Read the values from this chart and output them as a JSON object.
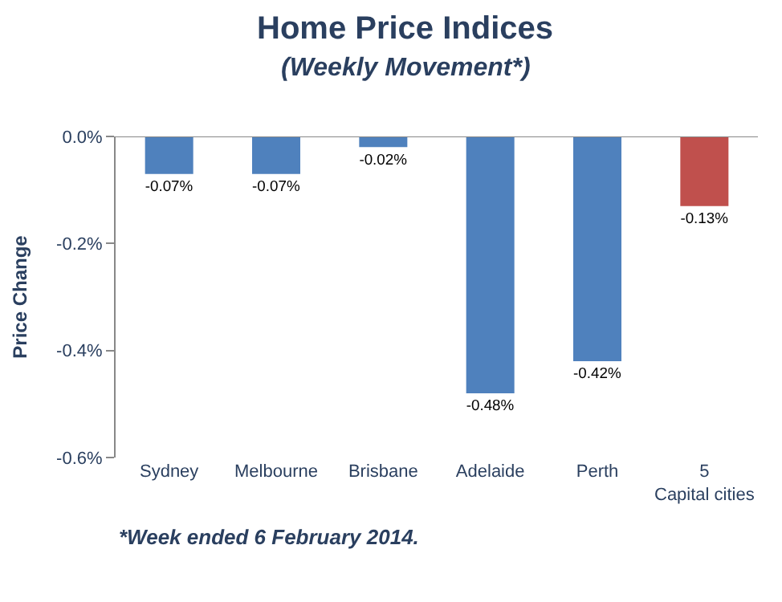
{
  "chart_data": {
    "type": "bar",
    "title": "Home Price Indices",
    "subtitle": "(Weekly Movement*)",
    "ylabel": "Price Change",
    "categories": [
      "Sydney",
      "Melbourne",
      "Brisbane",
      "Adelaide",
      "Perth",
      "5 Capital cities"
    ],
    "values": [
      -0.07,
      -0.07,
      -0.02,
      -0.48,
      -0.42,
      -0.13
    ],
    "colors": [
      "#4f81bd",
      "#4f81bd",
      "#4f81bd",
      "#4f81bd",
      "#4f81bd",
      "#c0504d"
    ],
    "value_labels": [
      "-0.07%",
      "-0.07%",
      "-0.02%",
      "-0.48%",
      "-0.42%",
      "-0.13%"
    ],
    "ylim": [
      -0.6,
      0
    ],
    "yticks": [
      {
        "value": 0,
        "label": "0.0%"
      },
      {
        "value": -0.2,
        "label": "-0.2%"
      },
      {
        "value": -0.4,
        "label": "-0.4%"
      },
      {
        "value": -0.6,
        "label": "-0.6%"
      }
    ],
    "annotations": [
      "*Week ended 6 February 2014."
    ]
  }
}
